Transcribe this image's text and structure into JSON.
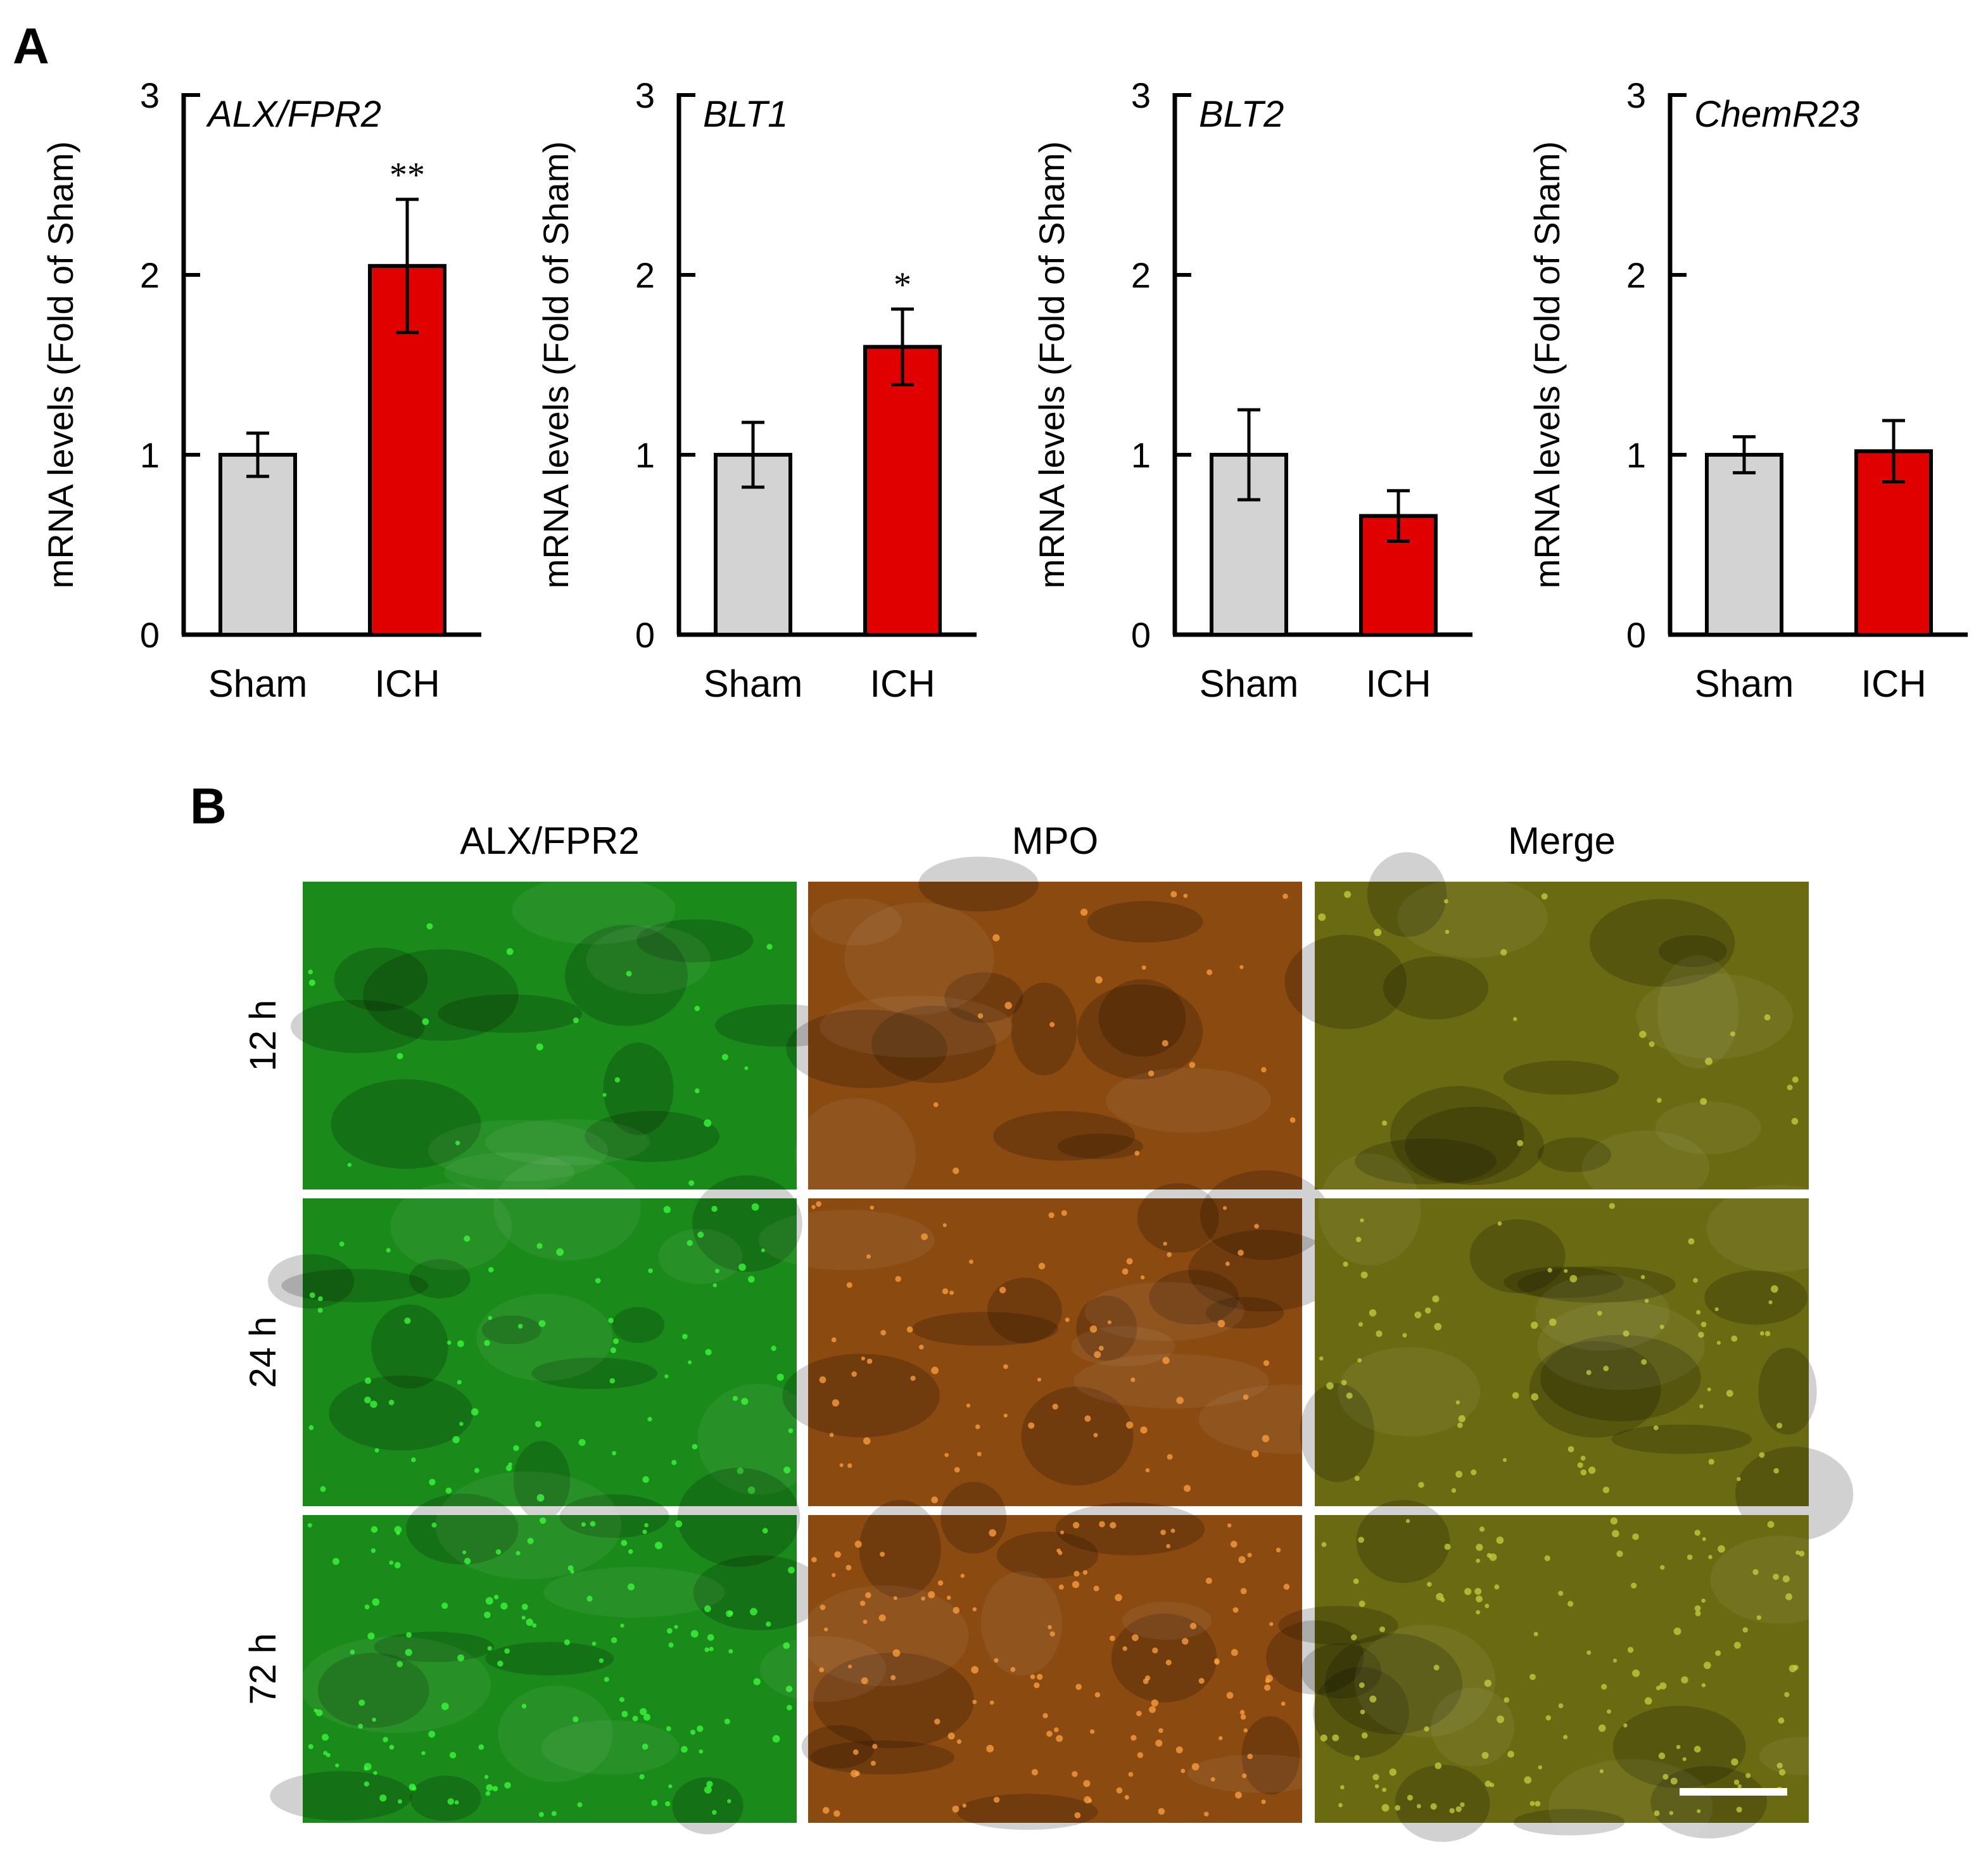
{
  "panel_a_label": "A",
  "panel_b_label": "B",
  "colors": {
    "sham": "#d3d3d3",
    "ich": "#e00000",
    "axis": "#000000"
  },
  "chart_data": [
    {
      "type": "bar",
      "title": "ALX/FPR2",
      "ylabel": "mRNA levels (Fold of Sham)",
      "ylim": [
        0,
        3
      ],
      "yticks": [
        "0",
        "1",
        "2",
        "3"
      ],
      "categories": [
        "Sham",
        "ICH"
      ],
      "values": [
        1.0,
        2.05
      ],
      "errors": [
        0.12,
        0.37
      ],
      "significance": [
        "",
        "**"
      ]
    },
    {
      "type": "bar",
      "title": "BLT1",
      "ylabel": "mRNA levels (Fold of Sham)",
      "ylim": [
        0,
        3
      ],
      "yticks": [
        "0",
        "1",
        "2",
        "3"
      ],
      "categories": [
        "Sham",
        "ICH"
      ],
      "values": [
        1.0,
        1.6
      ],
      "errors": [
        0.18,
        0.21
      ],
      "significance": [
        "",
        "*"
      ]
    },
    {
      "type": "bar",
      "title": "BLT2",
      "ylabel": "mRNA levels (Fold of Sham)",
      "ylim": [
        0,
        3
      ],
      "yticks": [
        "0",
        "1",
        "2",
        "3"
      ],
      "categories": [
        "Sham",
        "ICH"
      ],
      "values": [
        1.0,
        0.66
      ],
      "errors": [
        0.25,
        0.14
      ],
      "significance": [
        "",
        ""
      ]
    },
    {
      "type": "bar",
      "title": "ChemR23",
      "ylabel": "mRNA levels (Fold of Sham)",
      "ylim": [
        0,
        3
      ],
      "yticks": [
        "0",
        "1",
        "2",
        "3"
      ],
      "categories": [
        "Sham",
        "ICH"
      ],
      "values": [
        1.0,
        1.02
      ],
      "errors": [
        0.1,
        0.17
      ],
      "significance": [
        "",
        ""
      ]
    }
  ],
  "micrographs": {
    "columns": [
      "ALX/FPR2",
      "MPO",
      "Merge"
    ],
    "rows": [
      "12 h",
      "24 h",
      "72 h"
    ],
    "channel_colors": {
      "ALX/FPR2": "#1a8a1a",
      "MPO": "#8a4a10",
      "Merge": "#6a6a12"
    }
  }
}
